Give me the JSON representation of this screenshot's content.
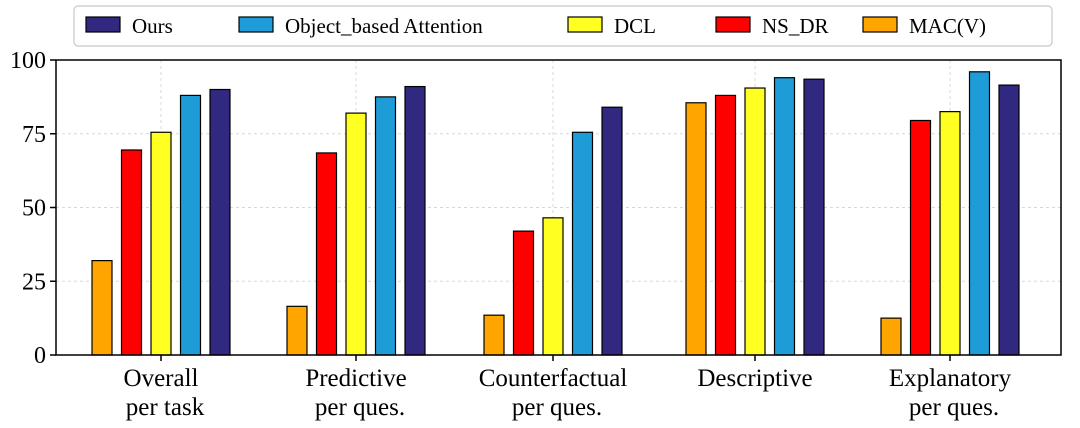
{
  "chart_data": {
    "type": "bar",
    "title": "",
    "xlabel": "",
    "ylabel": "",
    "ylim": [
      0,
      100
    ],
    "yticks": [
      0,
      25,
      50,
      75,
      100
    ],
    "grid": true,
    "legend_position": "top",
    "categories": [
      [
        "Overall",
        "per task"
      ],
      [
        "Predictive",
        "per ques."
      ],
      [
        "Counterfactual",
        "per ques."
      ],
      [
        "Descriptive"
      ],
      [
        "Explanatory",
        "per ques."
      ]
    ],
    "series": [
      {
        "name": "MAC(V)",
        "color": "#FFA500",
        "values": [
          32,
          16.5,
          13.5,
          85.5,
          12.5
        ]
      },
      {
        "name": "NS_DR",
        "color": "#FF0000",
        "values": [
          69.5,
          68.5,
          42,
          88,
          79.5
        ]
      },
      {
        "name": "DCL",
        "color": "#FFFF22",
        "values": [
          75.5,
          82,
          46.5,
          90.5,
          82.5
        ]
      },
      {
        "name": "Object_based Attention",
        "color": "#1E9CD7",
        "values": [
          88,
          87.5,
          75.5,
          94,
          96
        ]
      },
      {
        "name": "Ours",
        "color": "#312880",
        "values": [
          90,
          91,
          84,
          93.5,
          91.5
        ]
      }
    ],
    "legend_order": [
      "Ours",
      "Object_based Attention",
      "DCL",
      "NS_DR",
      "MAC(V)"
    ]
  }
}
